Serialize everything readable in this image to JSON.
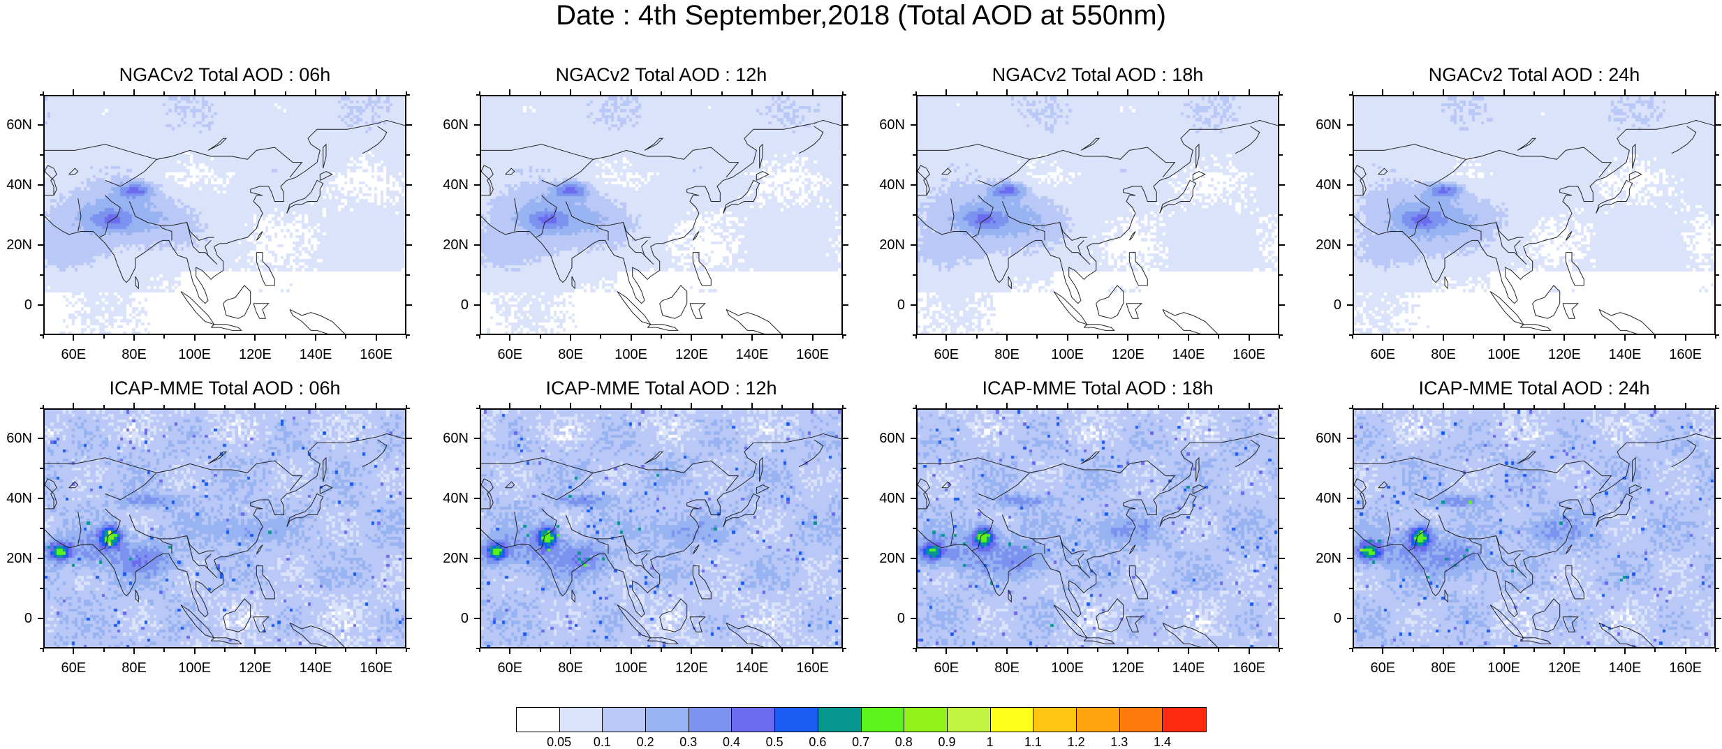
{
  "title": "Date : 4th September,2018 (Total AOD at 550nm)",
  "lat_ticks": [
    "60N",
    "40N",
    "20N",
    "0"
  ],
  "lon_ticks": [
    "60E",
    "80E",
    "100E",
    "120E",
    "140E",
    "160E"
  ],
  "panels": [
    {
      "title": "NGACv2 Total AOD : 06h",
      "model": "NGACv2",
      "hour": "06h"
    },
    {
      "title": "NGACv2 Total AOD : 12h",
      "model": "NGACv2",
      "hour": "12h"
    },
    {
      "title": "NGACv2 Total AOD : 18h",
      "model": "NGACv2",
      "hour": "18h"
    },
    {
      "title": "NGACv2 Total AOD : 24h",
      "model": "NGACv2",
      "hour": "24h"
    },
    {
      "title": "ICAP-MME Total AOD : 06h",
      "model": "ICAP-MME",
      "hour": "06h"
    },
    {
      "title": "ICAP-MME Total AOD : 12h",
      "model": "ICAP-MME",
      "hour": "12h"
    },
    {
      "title": "ICAP-MME Total AOD : 18h",
      "model": "ICAP-MME",
      "hour": "18h"
    },
    {
      "title": "ICAP-MME Total AOD : 24h",
      "model": "ICAP-MME",
      "hour": "24h"
    }
  ],
  "colorbar": {
    "labels": [
      "0.05",
      "0.1",
      "0.2",
      "0.3",
      "0.4",
      "0.5",
      "0.6",
      "0.7",
      "0.8",
      "0.9",
      "1",
      "1.1",
      "1.2",
      "1.3",
      "1.4"
    ],
    "colors": [
      "#ffffff",
      "#dbe3fb",
      "#b9c8f6",
      "#98b3f2",
      "#7c92ef",
      "#6a6bef",
      "#1a5cf2",
      "#06978f",
      "#5cf21c",
      "#93f21b",
      "#c2f443",
      "#ffff1a",
      "#ffc510",
      "#ffa30e",
      "#ff7a0c",
      "#ff2a12"
    ]
  }
}
